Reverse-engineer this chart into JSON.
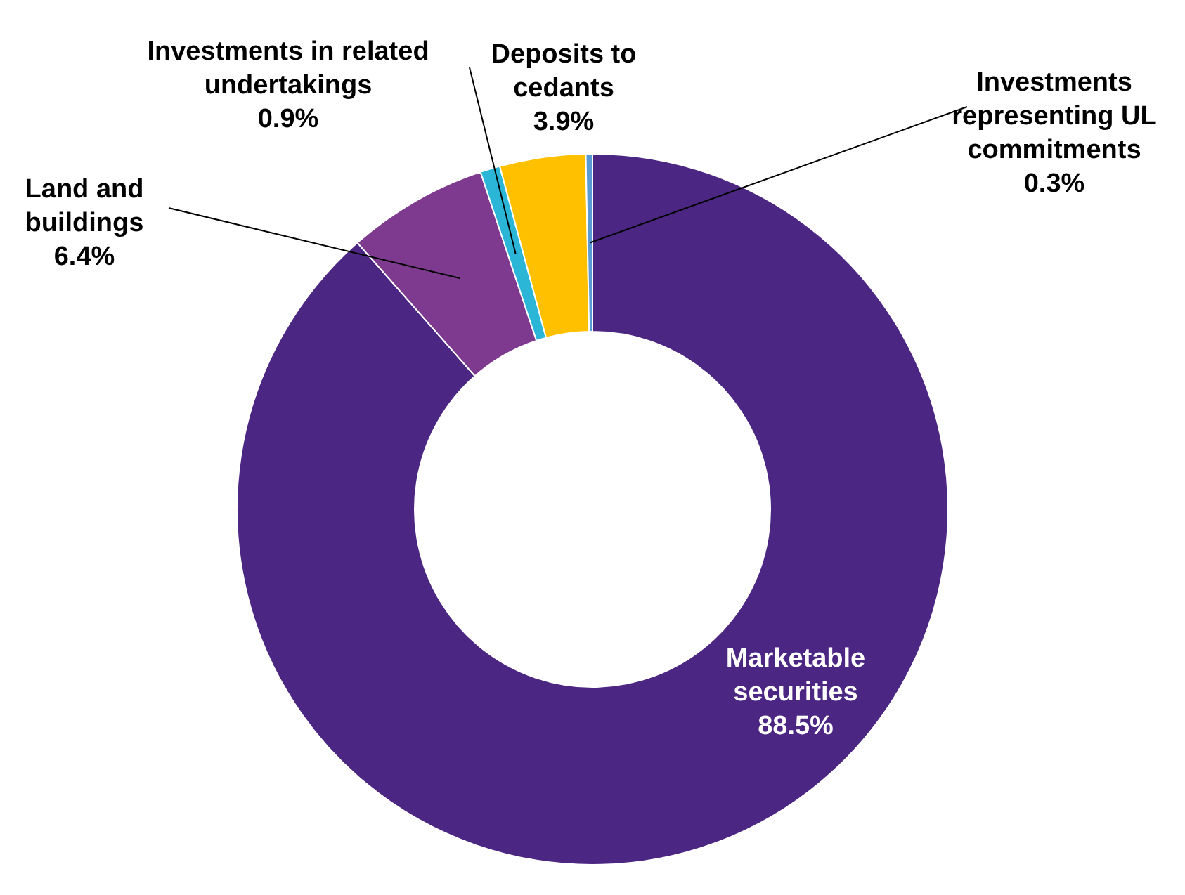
{
  "chart_data": {
    "type": "donut",
    "categories": [
      "Marketable securities",
      "Land and buildings",
      "Investments in related undertakings",
      "Deposits to cedants",
      "Investments representing UL commitments"
    ],
    "values": [
      88.5,
      6.4,
      0.9,
      3.9,
      0.3
    ],
    "value_labels": [
      "88.5%",
      "6.4%",
      "0.9%",
      "3.9%",
      "0.3%"
    ],
    "colors": [
      "#4b2682",
      "#7e3a8e",
      "#2bb6d8",
      "#ffc000",
      "#5b9bd5"
    ],
    "legend": false
  }
}
